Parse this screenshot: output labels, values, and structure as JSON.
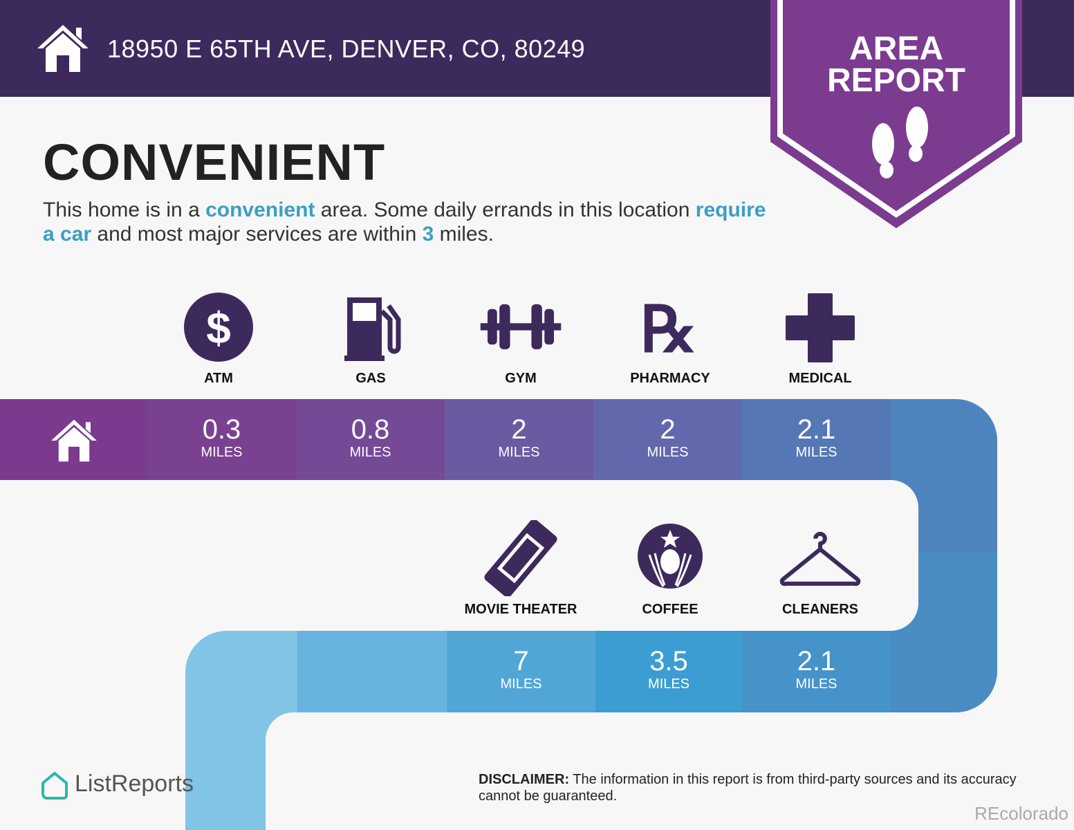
{
  "header": {
    "address": "18950 E 65TH AVE, DENVER, CO, 80249",
    "badge": [
      "AREA",
      "REPORT"
    ]
  },
  "title": "CONVENIENT",
  "description": {
    "p1": "This home is in a ",
    "h1": "convenient",
    "p2": " area. Some daily errands in this location ",
    "h2": "require a car",
    "p3": " and most major services are within ",
    "h3": "3",
    "p4": " miles."
  },
  "unit": "MILES",
  "row1": [
    {
      "label": "ATM",
      "value": "0.3",
      "icon": "dollar-icon"
    },
    {
      "label": "GAS",
      "value": "0.8",
      "icon": "gas-pump-icon"
    },
    {
      "label": "GYM",
      "value": "2",
      "icon": "dumbbell-icon"
    },
    {
      "label": "PHARMACY",
      "value": "2",
      "icon": "rx-icon"
    },
    {
      "label": "MEDICAL",
      "value": "2.1",
      "icon": "medical-cross-icon"
    }
  ],
  "row2": [
    {
      "label": "MOVIE THEATER",
      "value": "7",
      "icon": "ticket-icon"
    },
    {
      "label": "COFFEE",
      "value": "3.5",
      "icon": "coffee-logo-icon"
    },
    {
      "label": "CLEANERS",
      "value": "2.1",
      "icon": "hanger-icon"
    }
  ],
  "footer": {
    "brand": "ListReports",
    "disclaimer_label": "DISCLAIMER:",
    "disclaimer": " The information in this report is from third-party sources and its accuracy cannot be guaranteed.",
    "watermark": "REcolorado"
  },
  "colors": {
    "header": "#3d2a5c",
    "badge": "#7b3b8f",
    "highlight": "#3a9fc4",
    "icon": "#3d2a5c"
  }
}
